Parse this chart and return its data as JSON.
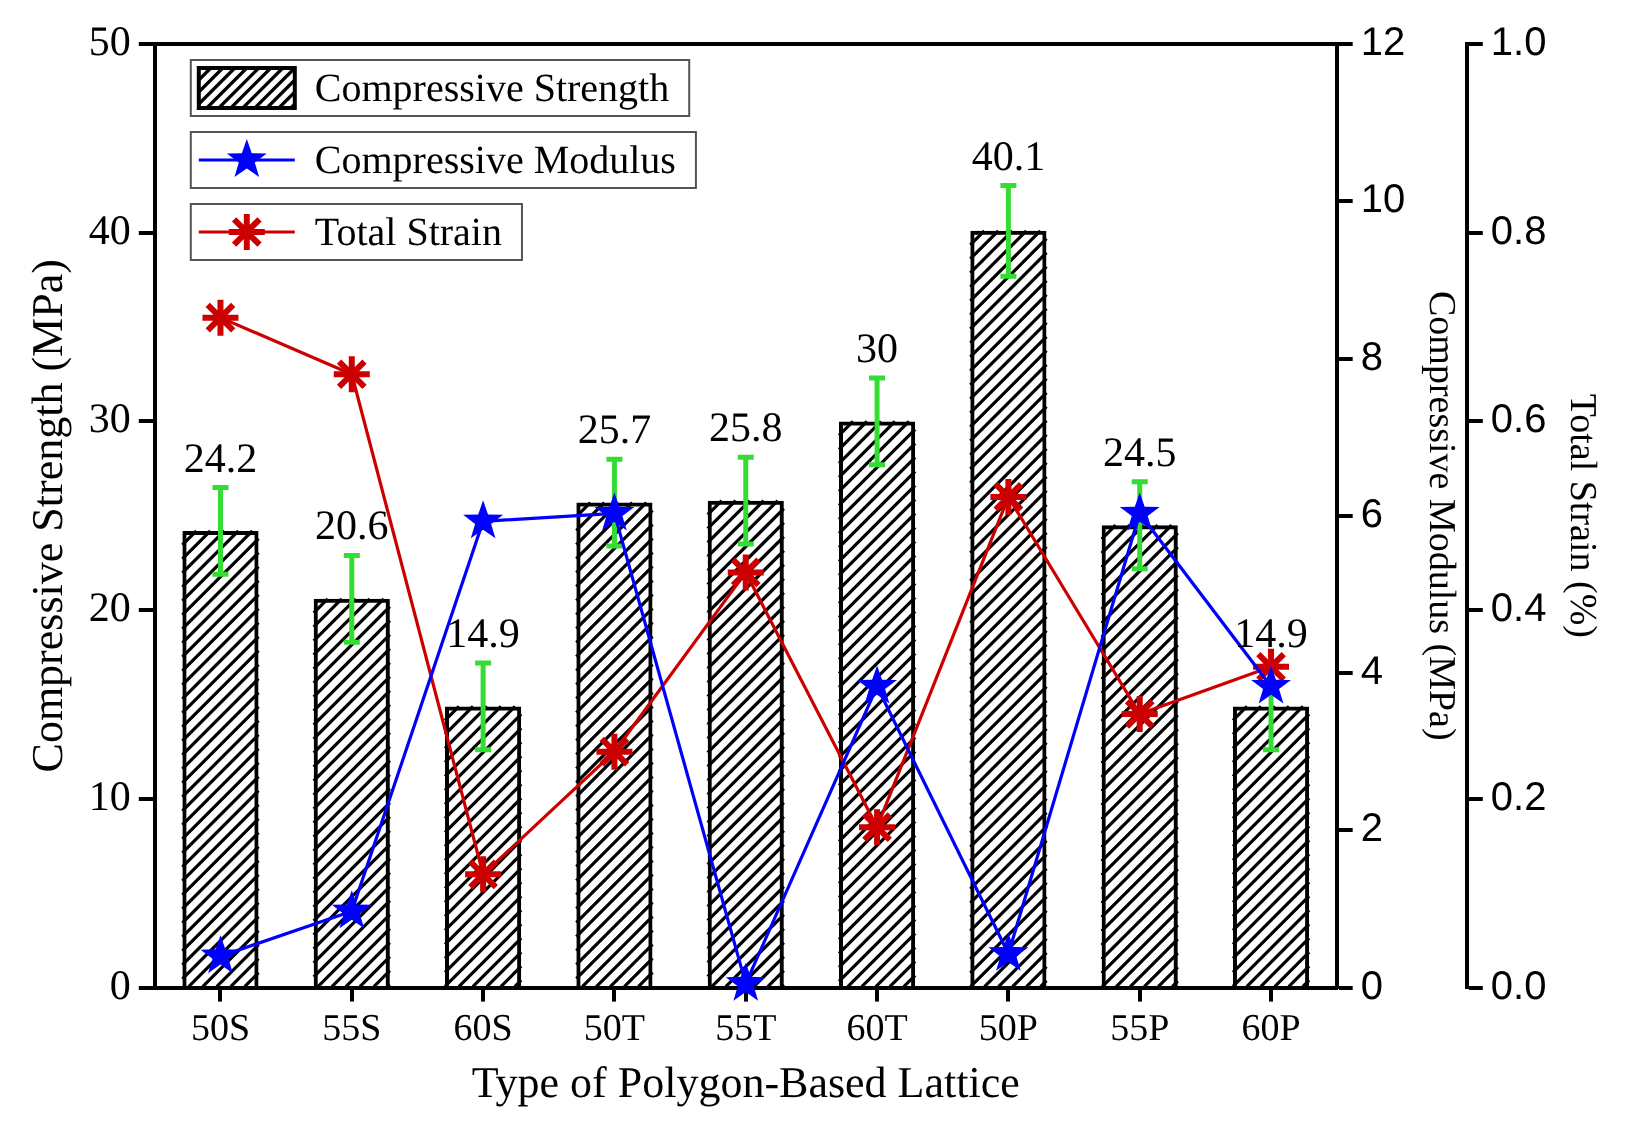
{
  "chart_data": {
    "type": "bar",
    "xlabel": "Type of Polygon-Based Lattice",
    "ylabel": "Compressive Strength (MPa)",
    "y2label": "Compressive Modulus (MPa)",
    "y3label": "Total Strain (%)",
    "categories": [
      "50S",
      "55S",
      "60S",
      "50T",
      "55T",
      "60T",
      "50P",
      "55P",
      "60P"
    ],
    "ylim": [
      0,
      50
    ],
    "yticks": [
      0,
      10,
      20,
      30,
      40,
      50
    ],
    "y2lim": [
      0,
      12
    ],
    "y2ticks": [
      0,
      2,
      4,
      6,
      8,
      10,
      12
    ],
    "y3lim": [
      0,
      1
    ],
    "y3ticks": [
      {
        "value": 0,
        "label": "0.0"
      },
      0.2,
      0.4,
      0.6,
      0.8,
      {
        "value": 1,
        "label": "1.0"
      }
    ],
    "legend": "top left",
    "grid": false,
    "series": [
      {
        "name": "Compressive Strength",
        "color": "#000000",
        "values": [
          24.2,
          20.6,
          14.9,
          25.7,
          25.8,
          30,
          40.1,
          24.5,
          14.9
        ],
        "errors": [
          2.3,
          2.3,
          2.3,
          2.3,
          2.3,
          2.3,
          2.4,
          2.3,
          2.3
        ],
        "value_labels": [
          "24.2",
          "20.6",
          "14.9",
          "25.7",
          "25.8",
          "30",
          "40.1",
          "24.5",
          "14.9"
        ]
      },
      {
        "name": "Compressive Modulus",
        "type": "line",
        "axis": "y2",
        "color": "#0000ff",
        "marker": "star",
        "values": [
          0.4,
          0.97,
          5.93,
          6.03,
          0.05,
          3.83,
          0.43,
          6.03,
          3.83
        ]
      },
      {
        "name": "Total Strain",
        "type": "line",
        "axis": "y3",
        "color": "#cc0000",
        "marker": "cross",
        "values": [
          0.71,
          0.65,
          0.12,
          0.25,
          0.44,
          0.17,
          0.52,
          0.29,
          0.34
        ]
      }
    ]
  }
}
